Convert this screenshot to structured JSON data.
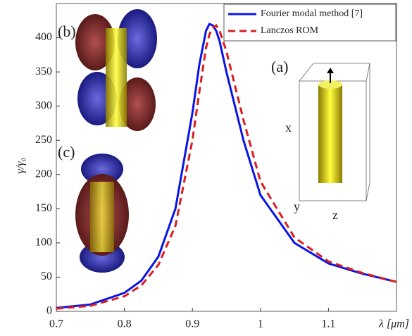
{
  "chart_data": {
    "type": "line",
    "ylabel": "γ/γ₀",
    "xlabel": "λ [μm]",
    "x": [
      0.7,
      0.75,
      0.8,
      0.825,
      0.85,
      0.875,
      0.9,
      0.91,
      0.92,
      0.925,
      0.93,
      0.935,
      0.94,
      0.95,
      0.975,
      1,
      1.05,
      1.1,
      1.15,
      1.2
    ],
    "series": [
      {
        "name": "Fourier modal method [7]",
        "color": "#0a14e6",
        "dash": false,
        "values": [
          5,
          10,
          27,
          45,
          80,
          150,
          290,
          360,
          410,
          420,
          418,
          410,
          395,
          350,
          250,
          170,
          100,
          70,
          55,
          43
        ]
      },
      {
        "name": "Lanczos ROM",
        "color": "#d81e1e",
        "dash": true,
        "values": [
          4,
          8,
          22,
          38,
          68,
          125,
          250,
          320,
          385,
          405,
          415,
          418,
          410,
          380,
          280,
          190,
          108,
          73,
          56,
          43
        ]
      }
    ],
    "xlim": [
      0.7,
      1.2
    ],
    "ylim": [
      0,
      450
    ],
    "xticks": [
      0.7,
      0.8,
      0.9,
      1,
      1.1
    ],
    "yticks": [
      0,
      50,
      100,
      150,
      200,
      250,
      300,
      350,
      400
    ],
    "legend": "upper right",
    "annotations": [
      "(a)",
      "(b)",
      "(c)",
      "x",
      "y",
      "z"
    ]
  }
}
